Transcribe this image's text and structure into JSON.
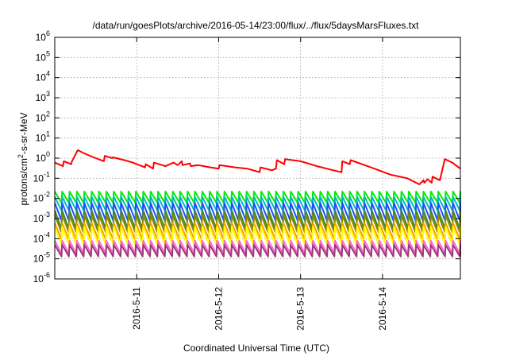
{
  "chart_data": {
    "type": "line",
    "title": "/data/run/goesPlots/archive/2016-05-14/23:00/flux/../flux/5daysMarsFluxes.txt",
    "xlabel": "Coordinated Universal Time (UTC)",
    "ylabel_main": "protons/cm",
    "ylabel_sup": "2",
    "ylabel_rest": "-s-sr-MeV",
    "yscale": "log",
    "ylim": [
      1e-06,
      1000000.0
    ],
    "xlim_days": [
      0,
      4.95
    ],
    "grid": true,
    "y_ticks": [
      {
        "base": "10",
        "exp": "-6",
        "value": 1e-06
      },
      {
        "base": "10",
        "exp": "-5",
        "value": 1e-05
      },
      {
        "base": "10",
        "exp": "-4",
        "value": 0.0001
      },
      {
        "base": "10",
        "exp": "-3",
        "value": 0.001
      },
      {
        "base": "10",
        "exp": "-2",
        "value": 0.01
      },
      {
        "base": "10",
        "exp": "-1",
        "value": 0.1
      },
      {
        "base": "10",
        "exp": "0",
        "value": 1
      },
      {
        "base": "10",
        "exp": "1",
        "value": 10.0
      },
      {
        "base": "10",
        "exp": "2",
        "value": 100.0
      },
      {
        "base": "10",
        "exp": "3",
        "value": 1000.0
      },
      {
        "base": "10",
        "exp": "4",
        "value": 10000.0
      },
      {
        "base": "10",
        "exp": "5",
        "value": 100000.0
      },
      {
        "base": "10",
        "exp": "6",
        "value": 1000000.0
      }
    ],
    "x_ticks": [
      {
        "label": "2016-5-11",
        "day": 1
      },
      {
        "label": "2016-5-12",
        "day": 2
      },
      {
        "label": "2016-5-13",
        "day": 3
      },
      {
        "label": "2016-5-14",
        "day": 4
      }
    ],
    "series": [
      {
        "color": "#ff0000",
        "x": [
          0.0,
          0.1,
          0.11,
          0.2,
          0.21,
          0.28,
          0.35,
          0.45,
          0.6,
          0.61,
          0.7,
          0.71,
          0.85,
          0.95,
          1.0,
          1.1,
          1.11,
          1.2,
          1.21,
          1.35,
          1.45,
          1.5,
          1.55,
          1.56,
          1.65,
          1.66,
          1.75,
          1.9,
          2.0,
          2.01,
          2.2,
          2.35,
          2.5,
          2.51,
          2.65,
          2.7,
          2.71,
          2.8,
          2.81,
          3.0,
          3.2,
          3.4,
          3.5,
          3.51,
          3.6,
          3.61,
          3.75,
          3.9,
          4.1,
          4.3,
          4.45,
          4.5,
          4.51,
          4.55,
          4.6,
          4.61,
          4.7,
          4.75,
          4.76,
          4.85,
          4.95
        ],
        "y": [
          0.6,
          0.4,
          0.7,
          0.5,
          0.7,
          2.5,
          1.8,
          1.2,
          0.7,
          1.3,
          1.0,
          1.1,
          0.8,
          0.6,
          0.5,
          0.35,
          0.5,
          0.3,
          0.6,
          0.4,
          0.6,
          0.45,
          0.7,
          0.45,
          0.55,
          0.4,
          0.45,
          0.35,
          0.3,
          0.45,
          0.35,
          0.3,
          0.2,
          0.35,
          0.25,
          0.3,
          0.8,
          0.5,
          0.9,
          0.7,
          0.4,
          0.25,
          0.2,
          0.7,
          0.5,
          0.8,
          0.5,
          0.3,
          0.15,
          0.1,
          0.05,
          0.08,
          0.06,
          0.09,
          0.06,
          0.12,
          0.08,
          0.6,
          0.9,
          0.6,
          0.3
        ]
      },
      {
        "color": "#00ee00",
        "repeat": {
          "period": 0.09,
          "peak": 0.022,
          "trough": 0.006
        }
      },
      {
        "color": "#00bbbb",
        "repeat": {
          "period": 0.09,
          "peak": 0.012,
          "trough": 0.0025
        }
      },
      {
        "color": "#1e4fff",
        "repeat": {
          "period": 0.09,
          "peak": 0.006,
          "trough": 0.0008
        }
      },
      {
        "color": "#3a8a3a",
        "repeat": {
          "period": 0.09,
          "peak": 0.0025,
          "trough": 0.0003
        }
      },
      {
        "color": "#8a8a00",
        "repeat": {
          "period": 0.09,
          "peak": 0.0015,
          "trough": 0.0002
        }
      },
      {
        "color": "#ff9900",
        "repeat": {
          "period": 0.09,
          "peak": 0.0006,
          "trough": 9e-05
        }
      },
      {
        "color": "#ffff00",
        "repeat": {
          "period": 0.09,
          "peak": 0.0004,
          "trough": 5e-05
        }
      },
      {
        "color": "#ff66cc",
        "repeat": {
          "period": 0.09,
          "peak": 8e-05,
          "trough": 1.8e-05
        }
      },
      {
        "color": "#9b3a7a",
        "repeat": {
          "period": 0.09,
          "peak": 5e-05,
          "trough": 1.3e-05
        }
      }
    ]
  }
}
